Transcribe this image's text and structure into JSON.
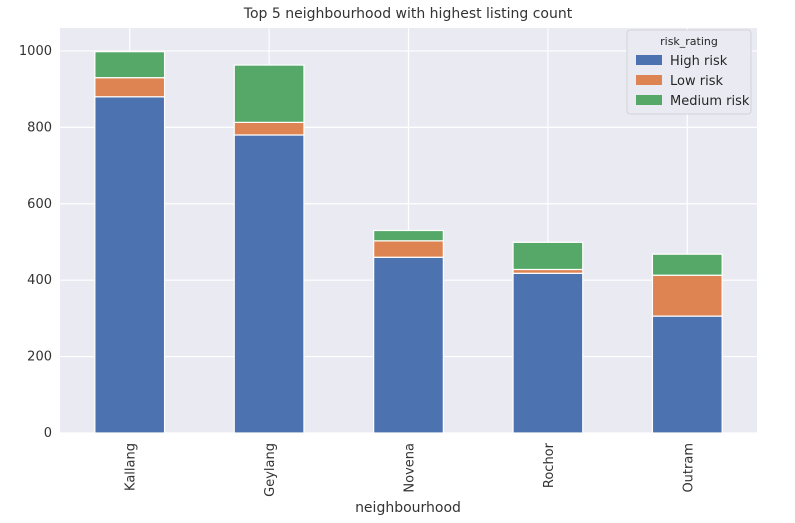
{
  "chart_data": {
    "type": "bar",
    "stacked": true,
    "title": "Top 5 neighbourhood with highest listing count",
    "xlabel": "neighbourhood",
    "ylabel": "",
    "categories": [
      "Kallang",
      "Geylang",
      "Novena",
      "Rochor",
      "Outram"
    ],
    "series": [
      {
        "name": "High risk",
        "color": "#4c72b0",
        "values": [
          880,
          780,
          460,
          418,
          306
        ]
      },
      {
        "name": "Low risk",
        "color": "#dd8452",
        "values": [
          50,
          33,
          43,
          10,
          107
        ]
      },
      {
        "name": "Medium risk",
        "color": "#55a868",
        "values": [
          68,
          150,
          27,
          71,
          55
        ]
      }
    ],
    "ylim": [
      0,
      1060
    ],
    "yticks": [
      0,
      200,
      400,
      600,
      800,
      1000
    ],
    "grid": true,
    "legend": {
      "title": "risk_rating",
      "placement": "top-right"
    },
    "background_color": "#eaeaf2"
  }
}
